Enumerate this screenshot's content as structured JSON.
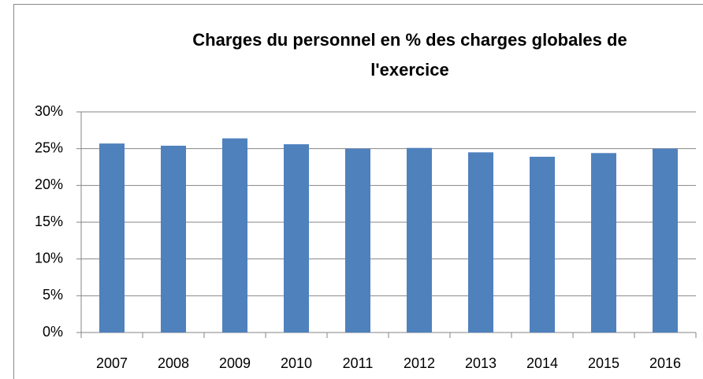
{
  "chart_data": {
    "type": "bar",
    "title": "Charges du personnel en % des charges globales de l'exercice",
    "categories": [
      "2007",
      "2008",
      "2009",
      "2010",
      "2011",
      "2012",
      "2013",
      "2014",
      "2015",
      "2016"
    ],
    "values": [
      25.7,
      25.4,
      26.4,
      25.6,
      25.0,
      25.1,
      24.5,
      23.9,
      24.4,
      25.0
    ],
    "color": "#4f81bd",
    "ylim": [
      0,
      30
    ],
    "yticks": [
      {
        "value": 0,
        "label": "0%"
      },
      {
        "value": 5,
        "label": "5%"
      },
      {
        "value": 10,
        "label": "10%"
      },
      {
        "value": 15,
        "label": "15%"
      },
      {
        "value": 20,
        "label": "20%"
      },
      {
        "value": 25,
        "label": "25%"
      },
      {
        "value": 30,
        "label": "30%"
      }
    ],
    "grid": true
  }
}
